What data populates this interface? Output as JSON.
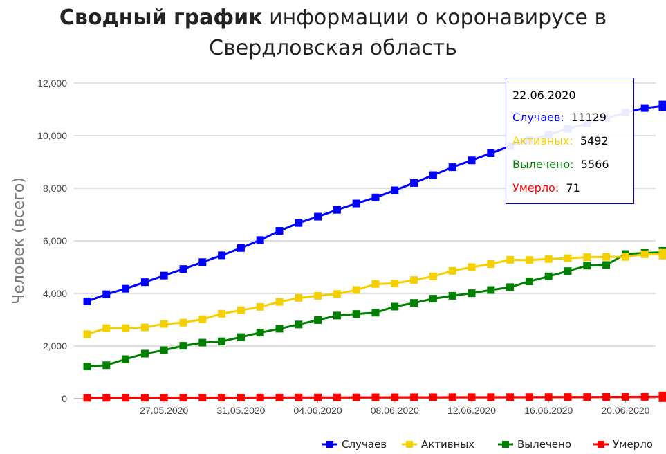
{
  "title": {
    "bold": "Сводный график",
    "rest_line1": " информации о коронавирусе в",
    "line2": "Свердловская область"
  },
  "tooltip": {
    "date": "22.06.2020",
    "rows": [
      {
        "label": "Случаев:",
        "value": "11129",
        "color": "#0000ff"
      },
      {
        "label": "Активных:",
        "value": "5492",
        "color": "#f5d000"
      },
      {
        "label": "Вылечено:",
        "value": "5566",
        "color": "#008000"
      },
      {
        "label": "Умерло:",
        "value": "71",
        "color": "#ff0000"
      }
    ]
  },
  "chart_data": {
    "type": "line",
    "ylabel": "Человек (всего)",
    "ylim": [
      0,
      12000
    ],
    "yticks": [
      "0",
      "2,000",
      "4,000",
      "6,000",
      "8,000",
      "10,000",
      "12,000"
    ],
    "x": [
      "23.05.2020",
      "24.05.2020",
      "25.05.2020",
      "26.05.2020",
      "27.05.2020",
      "28.05.2020",
      "29.05.2020",
      "30.05.2020",
      "31.05.2020",
      "01.06.2020",
      "02.06.2020",
      "03.06.2020",
      "04.06.2020",
      "05.06.2020",
      "06.06.2020",
      "07.06.2020",
      "08.06.2020",
      "09.06.2020",
      "10.06.2020",
      "11.06.2020",
      "12.06.2020",
      "13.06.2020",
      "14.06.2020",
      "15.06.2020",
      "16.06.2020",
      "17.06.2020",
      "18.06.2020",
      "19.06.2020",
      "20.06.2020",
      "21.06.2020",
      "22.06.2020"
    ],
    "xtick_labels": [
      "27.05.2020",
      "31.05.2020",
      "04.06.2020",
      "08.06.2020",
      "12.06.2020",
      "16.06.2020",
      "20.06.2020"
    ],
    "legend_position": "bottom-right",
    "series": [
      {
        "name": "Случаев",
        "color": "#0000ff",
        "values": [
          3700,
          3970,
          4180,
          4430,
          4680,
          4930,
          5190,
          5450,
          5730,
          6030,
          6380,
          6680,
          6920,
          7180,
          7420,
          7650,
          7920,
          8200,
          8500,
          8800,
          9060,
          9330,
          9600,
          9830,
          10030,
          10260,
          10460,
          10660,
          10880,
          11050,
          11129
        ]
      },
      {
        "name": "Активных",
        "color": "#f5d000",
        "values": [
          2450,
          2680,
          2680,
          2710,
          2840,
          2890,
          3020,
          3230,
          3360,
          3490,
          3680,
          3830,
          3910,
          3980,
          4130,
          4360,
          4380,
          4510,
          4650,
          4860,
          5000,
          5120,
          5280,
          5270,
          5310,
          5340,
          5380,
          5390,
          5390,
          5490,
          5492
        ]
      },
      {
        "name": "Вылечено",
        "color": "#008000",
        "values": [
          1220,
          1270,
          1500,
          1710,
          1840,
          2010,
          2130,
          2180,
          2340,
          2510,
          2660,
          2820,
          2990,
          3160,
          3220,
          3270,
          3500,
          3640,
          3800,
          3910,
          4010,
          4130,
          4240,
          4460,
          4650,
          4850,
          5060,
          5080,
          5500,
          5540,
          5566
        ]
      },
      {
        "name": "Умерло",
        "color": "#ff0000",
        "values": [
          30,
          32,
          33,
          35,
          36,
          37,
          38,
          40,
          41,
          42,
          43,
          45,
          46,
          47,
          48,
          50,
          51,
          52,
          53,
          55,
          56,
          57,
          58,
          60,
          61,
          62,
          63,
          65,
          67,
          69,
          71
        ]
      }
    ]
  }
}
